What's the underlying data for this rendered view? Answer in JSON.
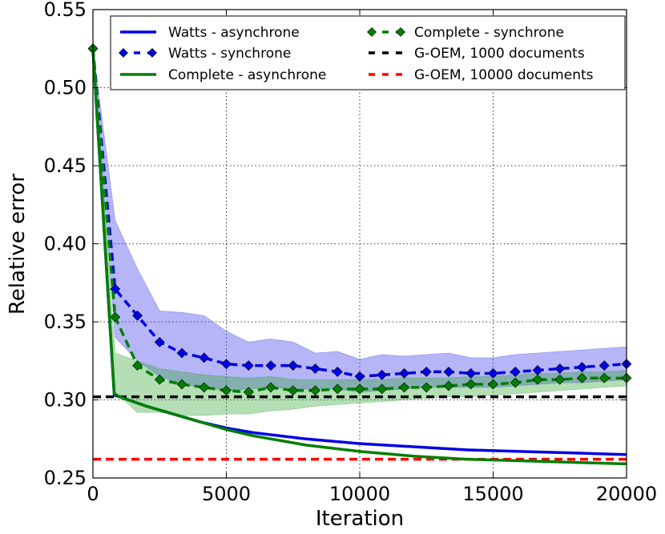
{
  "chart_data": {
    "type": "line",
    "title": "",
    "xlabel": "Iteration",
    "ylabel": "Relative error",
    "xlim": [
      0,
      20000
    ],
    "ylim": [
      0.25,
      0.55
    ],
    "x_ticks": [
      "0",
      "5000",
      "10000",
      "15000",
      "20000"
    ],
    "y_ticks": [
      "0.25",
      "0.30",
      "0.35",
      "0.40",
      "0.45",
      "0.50",
      "0.55"
    ],
    "grid": true,
    "legend_position": "top",
    "series": [
      {
        "name": "Watts - asynchrone",
        "color": "#0000e6",
        "style": "solid",
        "marker": "none",
        "x": [
          0,
          800,
          1000,
          2000,
          3000,
          4000,
          5000,
          6000,
          8000,
          10000,
          12000,
          14000,
          16000,
          18000,
          20000
        ],
        "values": [
          0.525,
          0.303,
          0.302,
          0.296,
          0.291,
          0.286,
          0.282,
          0.279,
          0.275,
          0.272,
          0.27,
          0.268,
          0.267,
          0.266,
          0.265
        ]
      },
      {
        "name": "Watts - synchrone",
        "color": "#0000e6",
        "style": "dashed",
        "marker": "diamond",
        "x": [
          0,
          833,
          1667,
          2500,
          3333,
          4167,
          5000,
          5833,
          6667,
          7500,
          8333,
          9167,
          10000,
          10833,
          11667,
          12500,
          13333,
          14167,
          15000,
          15833,
          16667,
          17500,
          18333,
          19167,
          20000
        ],
        "values": [
          0.525,
          0.371,
          0.354,
          0.337,
          0.33,
          0.327,
          0.323,
          0.322,
          0.322,
          0.322,
          0.32,
          0.318,
          0.315,
          0.316,
          0.317,
          0.318,
          0.318,
          0.317,
          0.317,
          0.318,
          0.319,
          0.32,
          0.321,
          0.322,
          0.323
        ],
        "band_upper": [
          0.525,
          0.415,
          0.384,
          0.357,
          0.356,
          0.354,
          0.344,
          0.337,
          0.339,
          0.337,
          0.33,
          0.331,
          0.326,
          0.329,
          0.328,
          0.329,
          0.33,
          0.327,
          0.327,
          0.329,
          0.33,
          0.331,
          0.332,
          0.333,
          0.334
        ],
        "band_lower": [
          0.525,
          0.34,
          0.325,
          0.315,
          0.31,
          0.308,
          0.306,
          0.307,
          0.308,
          0.307,
          0.307,
          0.307,
          0.305,
          0.306,
          0.307,
          0.308,
          0.308,
          0.308,
          0.308,
          0.309,
          0.31,
          0.311,
          0.311,
          0.312,
          0.313
        ]
      },
      {
        "name": "Complete - asynchrone",
        "color": "#007f00",
        "style": "solid",
        "marker": "none",
        "x": [
          0,
          800,
          1000,
          2000,
          3000,
          4000,
          5000,
          6000,
          8000,
          10000,
          12000,
          14000,
          16000,
          18000,
          20000
        ],
        "values": [
          0.525,
          0.304,
          0.302,
          0.296,
          0.291,
          0.286,
          0.281,
          0.277,
          0.271,
          0.267,
          0.264,
          0.262,
          0.261,
          0.26,
          0.259
        ]
      },
      {
        "name": "Complete - synchrone",
        "color": "#007f00",
        "style": "dashed",
        "marker": "diamond",
        "x": [
          0,
          833,
          1667,
          2500,
          3333,
          4167,
          5000,
          5833,
          6667,
          7500,
          8333,
          9167,
          10000,
          10833,
          11667,
          12500,
          13333,
          14167,
          15000,
          15833,
          16667,
          17500,
          18333,
          19167,
          20000
        ],
        "values": [
          0.525,
          0.353,
          0.322,
          0.313,
          0.31,
          0.308,
          0.306,
          0.305,
          0.308,
          0.306,
          0.306,
          0.307,
          0.307,
          0.307,
          0.308,
          0.308,
          0.309,
          0.31,
          0.31,
          0.311,
          0.313,
          0.313,
          0.314,
          0.314,
          0.314
        ],
        "band_upper": [
          0.525,
          0.33,
          0.325,
          0.32,
          0.318,
          0.316,
          0.315,
          0.314,
          0.315,
          0.313,
          0.313,
          0.313,
          0.313,
          0.313,
          0.314,
          0.314,
          0.314,
          0.315,
          0.315,
          0.316,
          0.317,
          0.317,
          0.318,
          0.318,
          0.319
        ],
        "band_lower": [
          0.525,
          0.305,
          0.292,
          0.292,
          0.29,
          0.29,
          0.291,
          0.291,
          0.293,
          0.294,
          0.296,
          0.297,
          0.298,
          0.299,
          0.3,
          0.301,
          0.302,
          0.302,
          0.303,
          0.304,
          0.305,
          0.306,
          0.307,
          0.308,
          0.309
        ]
      },
      {
        "name": "G-OEM, 1000 documents",
        "color": "#000000",
        "style": "dashed",
        "marker": "none",
        "x": [
          0,
          20000
        ],
        "values": [
          0.302,
          0.302
        ]
      },
      {
        "name": "G-OEM, 10000 documents",
        "color": "#ff0000",
        "style": "dashed",
        "marker": "none",
        "x": [
          0,
          20000
        ],
        "values": [
          0.262,
          0.262
        ]
      }
    ]
  }
}
